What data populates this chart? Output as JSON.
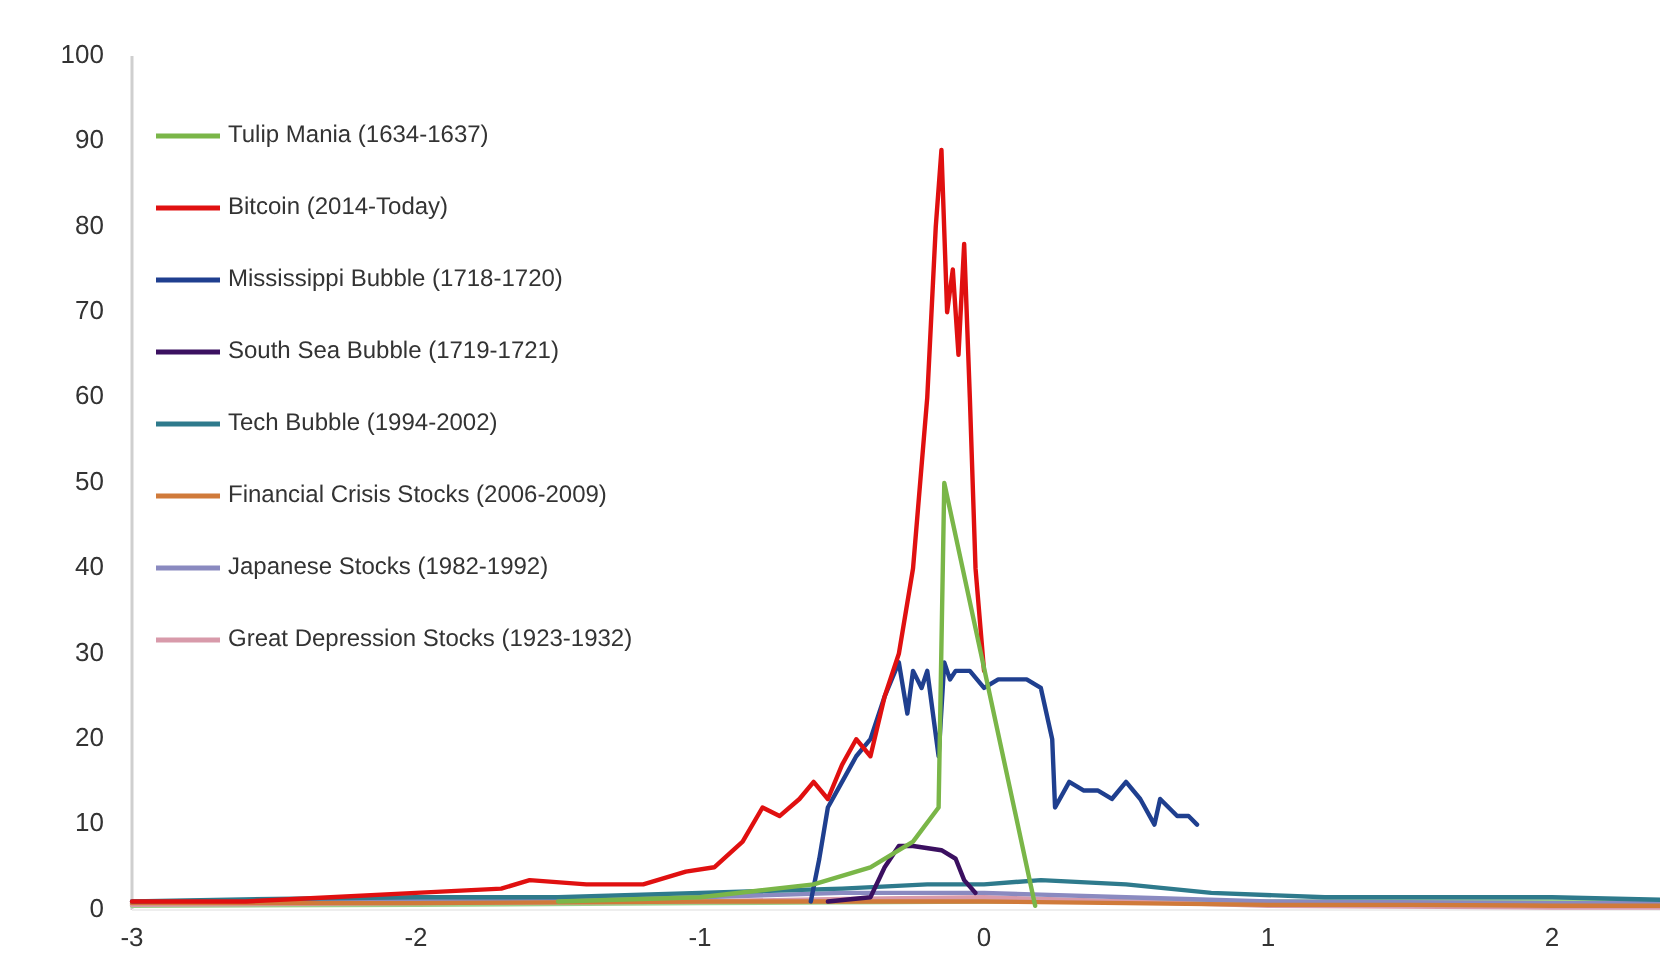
{
  "chart_data": {
    "type": "line",
    "xlim": [
      -3,
      2.38
    ],
    "ylim": [
      0,
      100
    ],
    "xticks": [
      -3,
      -2,
      -1,
      0,
      1,
      2
    ],
    "yticks": [
      0,
      10,
      20,
      30,
      40,
      50,
      60,
      70,
      80,
      90,
      100
    ],
    "grid": false,
    "legend": "top left",
    "line_style": "solid",
    "series": [
      {
        "name": "Tulip Mania (1634-1637)",
        "color": "#7ab648",
        "x": [
          -1.5,
          -1,
          -0.6,
          -0.4,
          -0.25,
          -0.16,
          -0.14,
          0.18
        ],
        "values": [
          1,
          1.5,
          3,
          5,
          8,
          12,
          50,
          0.5
        ]
      },
      {
        "name": "Bitcoin (2014-Today)",
        "color": "#e01010",
        "x": [
          -3,
          -2.6,
          -2.3,
          -2,
          -1.7,
          -1.6,
          -1.4,
          -1.2,
          -1.05,
          -0.95,
          -0.85,
          -0.78,
          -0.72,
          -0.65,
          -0.6,
          -0.55,
          -0.5,
          -0.45,
          -0.4,
          -0.35,
          -0.3,
          -0.25,
          -0.2,
          -0.17,
          -0.15,
          -0.13,
          -0.11,
          -0.09,
          -0.07,
          -0.05,
          -0.03,
          0
        ],
        "values": [
          1,
          1,
          1.5,
          2,
          2.5,
          3.5,
          3,
          3,
          4.5,
          5,
          8,
          12,
          11,
          13,
          15,
          13,
          17,
          20,
          18,
          25,
          30,
          40,
          60,
          80,
          89,
          70,
          75,
          65,
          78,
          60,
          40,
          28
        ]
      },
      {
        "name": "Mississippi Bubble (1718-1720)",
        "color": "#1f3f8f",
        "x": [
          -0.61,
          -0.58,
          -0.55,
          -0.5,
          -0.45,
          -0.4,
          -0.35,
          -0.3,
          -0.27,
          -0.25,
          -0.22,
          -0.2,
          -0.16,
          -0.14,
          -0.12,
          -0.1,
          -0.05,
          0,
          0.05,
          0.15,
          0.2,
          0.24,
          0.25,
          0.3,
          0.35,
          0.4,
          0.45,
          0.5,
          0.55,
          0.6,
          0.62,
          0.65,
          0.68,
          0.72,
          0.75
        ],
        "values": [
          1,
          6,
          12,
          15,
          18,
          20,
          25,
          29,
          23,
          28,
          26,
          28,
          18,
          29,
          27,
          28,
          28,
          26,
          27,
          27,
          26,
          20,
          12,
          15,
          14,
          14,
          13,
          15,
          13,
          10,
          13,
          12,
          11,
          11,
          10
        ]
      },
      {
        "name": "South Sea Bubble (1719-1721)",
        "color": "#3b1060",
        "x": [
          -0.55,
          -0.4,
          -0.35,
          -0.3,
          -0.25,
          -0.15,
          -0.1,
          -0.07,
          -0.03
        ],
        "values": [
          1,
          1.5,
          5,
          7.5,
          7.5,
          7,
          6,
          3.5,
          2
        ]
      },
      {
        "name": "Tech Bubble (1994-2002)",
        "color": "#2e7a8c",
        "x": [
          -3,
          -2.5,
          -2,
          -1.5,
          -1,
          -0.5,
          -0.2,
          0,
          0.2,
          0.5,
          0.8,
          1.2,
          1.6,
          2,
          2.38
        ],
        "values": [
          1,
          1.3,
          1.5,
          1.5,
          2,
          2.5,
          3,
          3,
          3.5,
          3,
          2,
          1.5,
          1.5,
          1.5,
          1.2
        ]
      },
      {
        "name": "Financial Crisis Stocks (2006-2009)",
        "color": "#d07a3a",
        "x": [
          -3,
          -2,
          -1,
          0,
          0.5,
          1,
          1.5,
          2,
          2.38
        ],
        "values": [
          0.8,
          0.8,
          1,
          1,
          0.8,
          0.6,
          0.6,
          0.5,
          0.5
        ]
      },
      {
        "name": "Japanese Stocks (1982-1992)",
        "color": "#8a8ac0",
        "x": [
          -3,
          -2,
          -1,
          -0.5,
          0,
          0.5,
          1,
          2,
          2.38
        ],
        "values": [
          1,
          1.2,
          1.5,
          2,
          2,
          1.5,
          1,
          0.8,
          0.8
        ]
      },
      {
        "name": "Great Depression Stocks (1923-1932)",
        "color": "#d89aaa",
        "x": [
          -3,
          -2,
          -1,
          -0.5,
          0,
          0.5,
          1,
          2,
          2.38
        ],
        "values": [
          0.6,
          0.8,
          1,
          1.3,
          1.5,
          1,
          0.5,
          0.3,
          0.3
        ]
      },
      {
        "color": "#9ccf8a",
        "x": [
          -3,
          -2,
          -1,
          0,
          1,
          2,
          2.38
        ],
        "values": [
          0.5,
          0.6,
          0.8,
          1,
          1,
          1,
          1
        ]
      }
    ]
  }
}
